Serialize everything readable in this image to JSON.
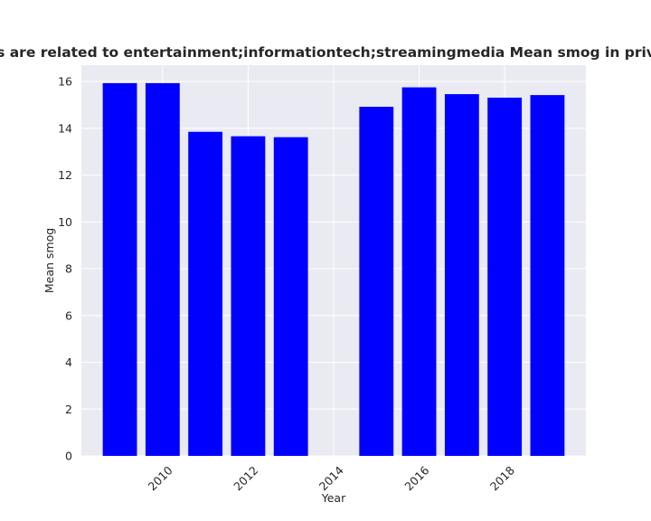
{
  "chart_data": {
    "type": "bar",
    "title": "gories are related to entertainment;informationtech;streamingmedia Mean smog in privacy pol",
    "xlabel": "Year",
    "ylabel": "Mean smog",
    "x": [
      2009,
      2010,
      2011,
      2012,
      2013,
      2015,
      2016,
      2017,
      2018,
      2019
    ],
    "values": [
      15.93,
      15.93,
      13.85,
      13.66,
      13.62,
      14.92,
      15.75,
      15.46,
      15.31,
      15.42
    ],
    "bar_color": "#0000ff",
    "background_color": "#eaeaf2",
    "grid_color": "#ffffff",
    "grid": true,
    "xlim": [
      2008.1,
      2019.9
    ],
    "ylim": [
      0,
      16.7
    ],
    "x_ticks": [
      2010,
      2012,
      2014,
      2016,
      2018
    ],
    "x_tick_labels": [
      "2010",
      "2012",
      "2014",
      "2016",
      "2018"
    ],
    "y_ticks": [
      0,
      2,
      4,
      6,
      8,
      10,
      12,
      14,
      16
    ],
    "y_tick_labels": [
      "0",
      "2",
      "4",
      "6",
      "8",
      "10",
      "12",
      "14",
      "16"
    ]
  }
}
